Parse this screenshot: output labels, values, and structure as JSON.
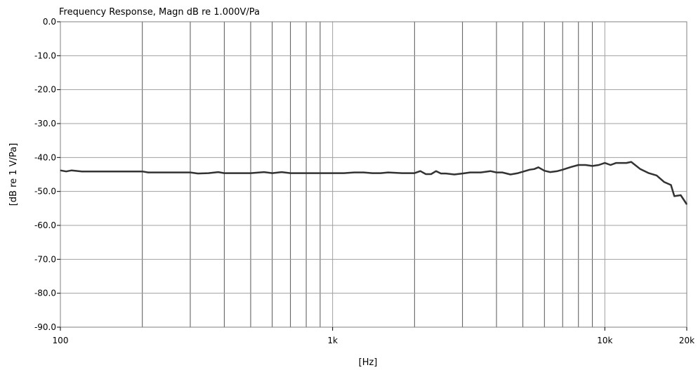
{
  "chart_data": {
    "type": "line",
    "title": "Frequency Response, Magn dB re 1.000V/Pa",
    "xlabel": "[Hz]",
    "ylabel": "[dB re 1 V/Pa]",
    "x_scale": "log",
    "xlim": [
      100,
      20000
    ],
    "ylim": [
      -90,
      0
    ],
    "grid": true,
    "x_ticks": [
      {
        "value": 100,
        "label": "100"
      },
      {
        "value": 1000,
        "label": "1k"
      },
      {
        "value": 10000,
        "label": "10k"
      },
      {
        "value": 20000,
        "label": "20k"
      }
    ],
    "y_ticks": [
      {
        "value": 0,
        "label": "0.0"
      },
      {
        "value": -10,
        "label": "-10.0"
      },
      {
        "value": -20,
        "label": "-20.0"
      },
      {
        "value": -30,
        "label": "-30.0"
      },
      {
        "value": -40,
        "label": "-40.0"
      },
      {
        "value": -50,
        "label": "-50.0"
      },
      {
        "value": -60,
        "label": "-60.0"
      },
      {
        "value": -70,
        "label": "-70.0"
      },
      {
        "value": -80,
        "label": "-80.0"
      },
      {
        "value": -90,
        "label": "-90.0"
      }
    ],
    "colors": {
      "line": "#333333",
      "major_grid": "#555555",
      "minor_grid": "#a0a0a0",
      "frame": "#808080"
    },
    "series": [
      {
        "x": [
          100,
          105,
          110,
          120,
          150,
          200,
          210,
          250,
          300,
          320,
          350,
          380,
          400,
          500,
          560,
          600,
          650,
          700,
          800,
          900,
          1000,
          1100,
          1200,
          1300,
          1400,
          1500,
          1600,
          1800,
          2000,
          2100,
          2200,
          2300,
          2400,
          2500,
          2600,
          2800,
          3000,
          3200,
          3500,
          3800,
          4000,
          4200,
          4500,
          4800,
          5000,
          5300,
          5500,
          5700,
          6000,
          6300,
          6700,
          7000,
          7500,
          8000,
          8500,
          9000,
          9500,
          10000,
          10500,
          11000,
          12000,
          12500,
          13500,
          14500,
          15500,
          16500,
          17500,
          18000,
          19000,
          20000
        ],
        "y": [
          -43.8,
          -44.1,
          -43.8,
          -44.1,
          -44.1,
          -44.1,
          -44.4,
          -44.4,
          -44.4,
          -44.7,
          -44.6,
          -44.3,
          -44.6,
          -44.6,
          -44.3,
          -44.6,
          -44.3,
          -44.6,
          -44.6,
          -44.6,
          -44.6,
          -44.6,
          -44.4,
          -44.4,
          -44.6,
          -44.6,
          -44.4,
          -44.6,
          -44.6,
          -44.0,
          -44.9,
          -44.9,
          -44.0,
          -44.7,
          -44.7,
          -45.0,
          -44.7,
          -44.4,
          -44.4,
          -44.0,
          -44.4,
          -44.4,
          -45.0,
          -44.6,
          -44.2,
          -43.6,
          -43.4,
          -42.9,
          -43.9,
          -44.3,
          -44.0,
          -43.6,
          -42.8,
          -42.2,
          -42.2,
          -42.5,
          -42.2,
          -41.6,
          -42.2,
          -41.6,
          -41.6,
          -41.3,
          -43.4,
          -44.6,
          -45.3,
          -47.2,
          -48.1,
          -51.4,
          -51.1,
          -53.8
        ]
      }
    ]
  }
}
